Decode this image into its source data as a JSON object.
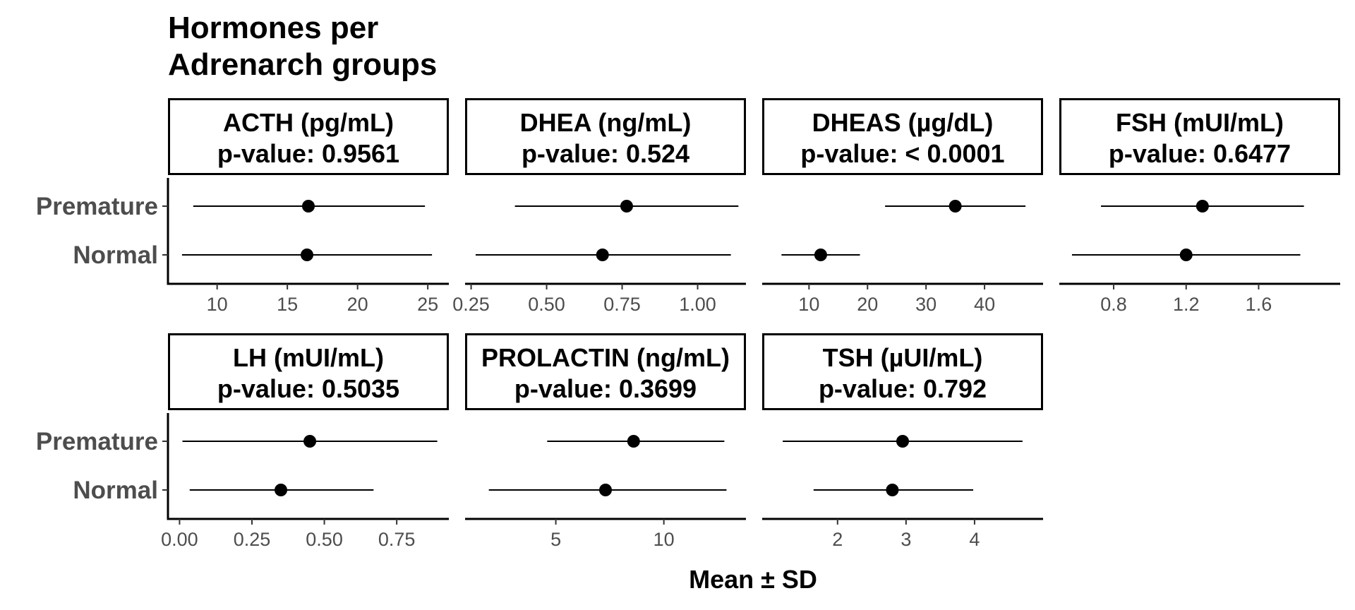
{
  "title_lines": [
    "Hormones per",
    "Adrenarch groups"
  ],
  "x_axis_label": "Mean ± SD",
  "chart_data": {
    "type": "scatter",
    "subtype": "point-range (mean ± SD), faceted",
    "title": "Hormones per Adrenarch groups",
    "xlabel": "Mean ± SD",
    "categories": [
      "Normal",
      "Premature"
    ],
    "facets": [
      {
        "label": "ACTH (pg/mL)",
        "pvalue_label": "p-value: 0.9561",
        "xlim": [
          6.5,
          26.5
        ],
        "ticks": [
          10,
          15,
          20,
          25
        ],
        "series": [
          {
            "group": "Premature",
            "mean": 16.5,
            "lower": 8.3,
            "upper": 24.8
          },
          {
            "group": "Normal",
            "mean": 16.4,
            "lower": 7.5,
            "upper": 25.3
          }
        ]
      },
      {
        "label": "DHEA (ng/mL)",
        "pvalue_label": "p-value: 0.524",
        "xlim": [
          0.23,
          1.16
        ],
        "ticks": [
          0.25,
          0.5,
          0.75,
          1.0
        ],
        "tick_labels": [
          "0.25",
          "0.50",
          "0.75",
          "1.00"
        ],
        "series": [
          {
            "group": "Premature",
            "mean": 0.765,
            "lower": 0.395,
            "upper": 1.135
          },
          {
            "group": "Normal",
            "mean": 0.685,
            "lower": 0.265,
            "upper": 1.11
          }
        ]
      },
      {
        "label": "DHEAS (µg/dL)",
        "pvalue_label": "p-value: < 0.0001",
        "xlim": [
          2,
          50
        ],
        "ticks": [
          10,
          20,
          30,
          40
        ],
        "series": [
          {
            "group": "Premature",
            "mean": 35.0,
            "lower": 23.0,
            "upper": 47.0
          },
          {
            "group": "Normal",
            "mean": 12.0,
            "lower": 5.3,
            "upper": 18.7
          }
        ]
      },
      {
        "label": "FSH (mUI/mL)",
        "pvalue_label": "p-value: 0.6477",
        "xlim": [
          0.5,
          2.05
        ],
        "ticks": [
          0.8,
          1.2,
          1.6
        ],
        "tick_labels": [
          "0.8",
          "1.2",
          "1.6"
        ],
        "series": [
          {
            "group": "Premature",
            "mean": 1.29,
            "lower": 0.73,
            "upper": 1.85
          },
          {
            "group": "Normal",
            "mean": 1.2,
            "lower": 0.57,
            "upper": 1.83
          }
        ]
      },
      {
        "label": "LH (mUI/mL)",
        "pvalue_label": "p-value: 0.5035",
        "xlim": [
          -0.04,
          0.93
        ],
        "ticks": [
          0,
          0.25,
          0.5,
          0.75
        ],
        "tick_labels": [
          "0.00",
          "0.25",
          "0.50",
          "0.75"
        ],
        "series": [
          {
            "group": "Premature",
            "mean": 0.45,
            "lower": 0.01,
            "upper": 0.89
          },
          {
            "group": "Normal",
            "mean": 0.35,
            "lower": 0.035,
            "upper": 0.67
          }
        ]
      },
      {
        "label": "PROLACTIN (ng/mL)",
        "pvalue_label": "p-value: 0.3699",
        "xlim": [
          0.8,
          13.8
        ],
        "ticks": [
          5,
          10
        ],
        "series": [
          {
            "group": "Premature",
            "mean": 8.6,
            "lower": 4.6,
            "upper": 12.8
          },
          {
            "group": "Normal",
            "mean": 7.3,
            "lower": 1.9,
            "upper": 12.9
          }
        ]
      },
      {
        "label": "TSH (µUI/mL)",
        "pvalue_label": "p-value: 0.792",
        "xlim": [
          0.9,
          5.0
        ],
        "ticks": [
          2,
          3,
          4
        ],
        "series": [
          {
            "group": "Premature",
            "mean": 2.95,
            "lower": 1.2,
            "upper": 4.7
          },
          {
            "group": "Normal",
            "mean": 2.8,
            "lower": 1.65,
            "upper": 3.98
          }
        ]
      }
    ],
    "grid": false,
    "legend": "none"
  }
}
